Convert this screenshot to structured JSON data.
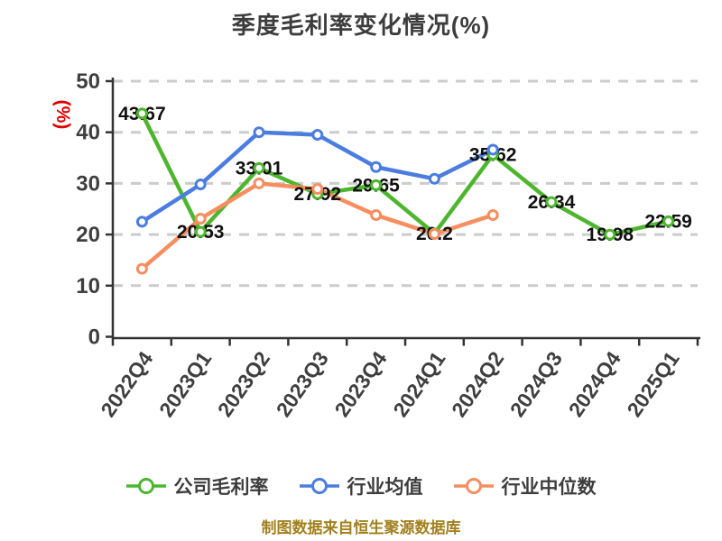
{
  "chart_data": {
    "type": "line",
    "title": "季度毛利率变化情况(%)",
    "title_color": "#3d3d3d",
    "y_axis_name": "(%)",
    "y_axis_name_color": "#dd0000",
    "categories": [
      "2022Q4",
      "2023Q1",
      "2023Q2",
      "2023Q3",
      "2023Q4",
      "2024Q1",
      "2024Q2",
      "2024Q3",
      "2024Q4",
      "2025Q1"
    ],
    "ylim": [
      0,
      50
    ],
    "yticks": [
      0,
      10,
      20,
      30,
      40,
      50
    ],
    "grid": {
      "horizontal_dashed": true,
      "color": "#cccccc"
    },
    "axis_color": "#333333",
    "tick_label_color": "#3f3f3f",
    "value_label_color": "#111111",
    "legend_position": "bottom",
    "series": [
      {
        "name": "公司毛利率",
        "key": "company-gross-margin",
        "color": "#4db62e",
        "labeled": true,
        "values": [
          43.67,
          20.53,
          33.01,
          27.92,
          29.65,
          20.2,
          35.62,
          26.34,
          19.98,
          22.59
        ]
      },
      {
        "name": "行业均值",
        "key": "industry-mean",
        "color": "#4b7de0",
        "labeled": false,
        "values": [
          22.5,
          29.8,
          40.0,
          39.5,
          33.2,
          30.9,
          36.6,
          null,
          null,
          null
        ]
      },
      {
        "name": "行业中位数",
        "key": "industry-median",
        "color": "#f78e5f",
        "labeled": false,
        "values": [
          13.3,
          23.1,
          30.0,
          28.9,
          23.8,
          20.1,
          23.8,
          null,
          null,
          null
        ]
      }
    ]
  },
  "footer": {
    "text": "制图数据来自恒生聚源数据库",
    "color": "#a2801c"
  }
}
